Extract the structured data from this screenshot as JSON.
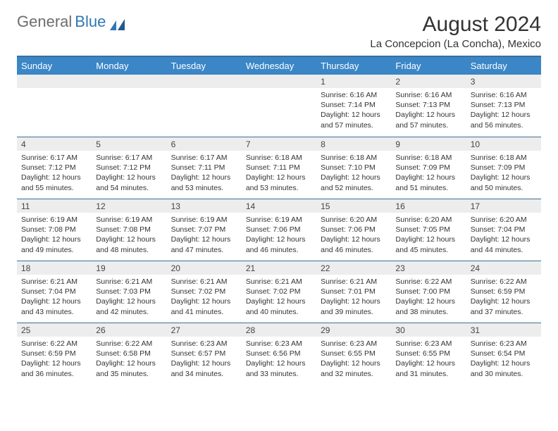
{
  "logo": {
    "text1": "General",
    "text2": "Blue"
  },
  "title": "August 2024",
  "subtitle": "La Concepcion (La Concha), Mexico",
  "colors": {
    "header_bg": "#3b86c6",
    "header_text": "#ffffff",
    "row_border": "#3b6f99",
    "daynum_bg": "#ededed",
    "text": "#333333",
    "logo_blue": "#2f77b7",
    "logo_gray": "#6d6d6d",
    "page_bg": "#ffffff"
  },
  "daysOfWeek": [
    "Sunday",
    "Monday",
    "Tuesday",
    "Wednesday",
    "Thursday",
    "Friday",
    "Saturday"
  ],
  "labels": {
    "sunrise": "Sunrise:",
    "sunset": "Sunset:",
    "daylight": "Daylight:"
  },
  "startWeekday": 4,
  "days": [
    {
      "n": 1,
      "sunrise": "6:16 AM",
      "sunset": "7:14 PM",
      "daylight": "12 hours and 57 minutes."
    },
    {
      "n": 2,
      "sunrise": "6:16 AM",
      "sunset": "7:13 PM",
      "daylight": "12 hours and 57 minutes."
    },
    {
      "n": 3,
      "sunrise": "6:16 AM",
      "sunset": "7:13 PM",
      "daylight": "12 hours and 56 minutes."
    },
    {
      "n": 4,
      "sunrise": "6:17 AM",
      "sunset": "7:12 PM",
      "daylight": "12 hours and 55 minutes."
    },
    {
      "n": 5,
      "sunrise": "6:17 AM",
      "sunset": "7:12 PM",
      "daylight": "12 hours and 54 minutes."
    },
    {
      "n": 6,
      "sunrise": "6:17 AM",
      "sunset": "7:11 PM",
      "daylight": "12 hours and 53 minutes."
    },
    {
      "n": 7,
      "sunrise": "6:18 AM",
      "sunset": "7:11 PM",
      "daylight": "12 hours and 53 minutes."
    },
    {
      "n": 8,
      "sunrise": "6:18 AM",
      "sunset": "7:10 PM",
      "daylight": "12 hours and 52 minutes."
    },
    {
      "n": 9,
      "sunrise": "6:18 AM",
      "sunset": "7:09 PM",
      "daylight": "12 hours and 51 minutes."
    },
    {
      "n": 10,
      "sunrise": "6:18 AM",
      "sunset": "7:09 PM",
      "daylight": "12 hours and 50 minutes."
    },
    {
      "n": 11,
      "sunrise": "6:19 AM",
      "sunset": "7:08 PM",
      "daylight": "12 hours and 49 minutes."
    },
    {
      "n": 12,
      "sunrise": "6:19 AM",
      "sunset": "7:08 PM",
      "daylight": "12 hours and 48 minutes."
    },
    {
      "n": 13,
      "sunrise": "6:19 AM",
      "sunset": "7:07 PM",
      "daylight": "12 hours and 47 minutes."
    },
    {
      "n": 14,
      "sunrise": "6:19 AM",
      "sunset": "7:06 PM",
      "daylight": "12 hours and 46 minutes."
    },
    {
      "n": 15,
      "sunrise": "6:20 AM",
      "sunset": "7:06 PM",
      "daylight": "12 hours and 46 minutes."
    },
    {
      "n": 16,
      "sunrise": "6:20 AM",
      "sunset": "7:05 PM",
      "daylight": "12 hours and 45 minutes."
    },
    {
      "n": 17,
      "sunrise": "6:20 AM",
      "sunset": "7:04 PM",
      "daylight": "12 hours and 44 minutes."
    },
    {
      "n": 18,
      "sunrise": "6:21 AM",
      "sunset": "7:04 PM",
      "daylight": "12 hours and 43 minutes."
    },
    {
      "n": 19,
      "sunrise": "6:21 AM",
      "sunset": "7:03 PM",
      "daylight": "12 hours and 42 minutes."
    },
    {
      "n": 20,
      "sunrise": "6:21 AM",
      "sunset": "7:02 PM",
      "daylight": "12 hours and 41 minutes."
    },
    {
      "n": 21,
      "sunrise": "6:21 AM",
      "sunset": "7:02 PM",
      "daylight": "12 hours and 40 minutes."
    },
    {
      "n": 22,
      "sunrise": "6:21 AM",
      "sunset": "7:01 PM",
      "daylight": "12 hours and 39 minutes."
    },
    {
      "n": 23,
      "sunrise": "6:22 AM",
      "sunset": "7:00 PM",
      "daylight": "12 hours and 38 minutes."
    },
    {
      "n": 24,
      "sunrise": "6:22 AM",
      "sunset": "6:59 PM",
      "daylight": "12 hours and 37 minutes."
    },
    {
      "n": 25,
      "sunrise": "6:22 AM",
      "sunset": "6:59 PM",
      "daylight": "12 hours and 36 minutes."
    },
    {
      "n": 26,
      "sunrise": "6:22 AM",
      "sunset": "6:58 PM",
      "daylight": "12 hours and 35 minutes."
    },
    {
      "n": 27,
      "sunrise": "6:23 AM",
      "sunset": "6:57 PM",
      "daylight": "12 hours and 34 minutes."
    },
    {
      "n": 28,
      "sunrise": "6:23 AM",
      "sunset": "6:56 PM",
      "daylight": "12 hours and 33 minutes."
    },
    {
      "n": 29,
      "sunrise": "6:23 AM",
      "sunset": "6:55 PM",
      "daylight": "12 hours and 32 minutes."
    },
    {
      "n": 30,
      "sunrise": "6:23 AM",
      "sunset": "6:55 PM",
      "daylight": "12 hours and 31 minutes."
    },
    {
      "n": 31,
      "sunrise": "6:23 AM",
      "sunset": "6:54 PM",
      "daylight": "12 hours and 30 minutes."
    }
  ]
}
